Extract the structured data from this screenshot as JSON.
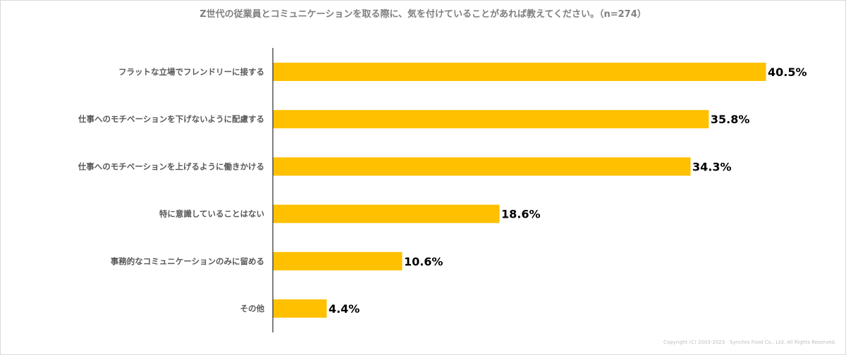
{
  "title": "Z世代の従業員とコミュニケーションを取る際に、気を付けていることがあれば教えてください。（n=274）",
  "copyright": "Copyright (C) 2003-2023　Synchro Food Co., Ltd. All Rights Reserved.",
  "chart_data": {
    "type": "bar",
    "orientation": "horizontal",
    "unit": "%",
    "categories": [
      "フラットな立場でフレンドリーに接する",
      "仕事へのモチベーションを下げないように配慮する",
      "仕事へのモチベーションを上げるように働きかける",
      "特に意識していることはない",
      "事務的なコミュニケーションのみに留める",
      "その他"
    ],
    "values": [
      40.5,
      35.8,
      34.3,
      18.6,
      10.6,
      4.4
    ],
    "value_labels": [
      "40.5%",
      "35.8%",
      "34.3%",
      "18.6%",
      "10.6%",
      "4.4%"
    ],
    "bar_color": "#FFC000",
    "xlim": [
      0,
      40.5
    ],
    "grid": false,
    "legend": "none"
  }
}
